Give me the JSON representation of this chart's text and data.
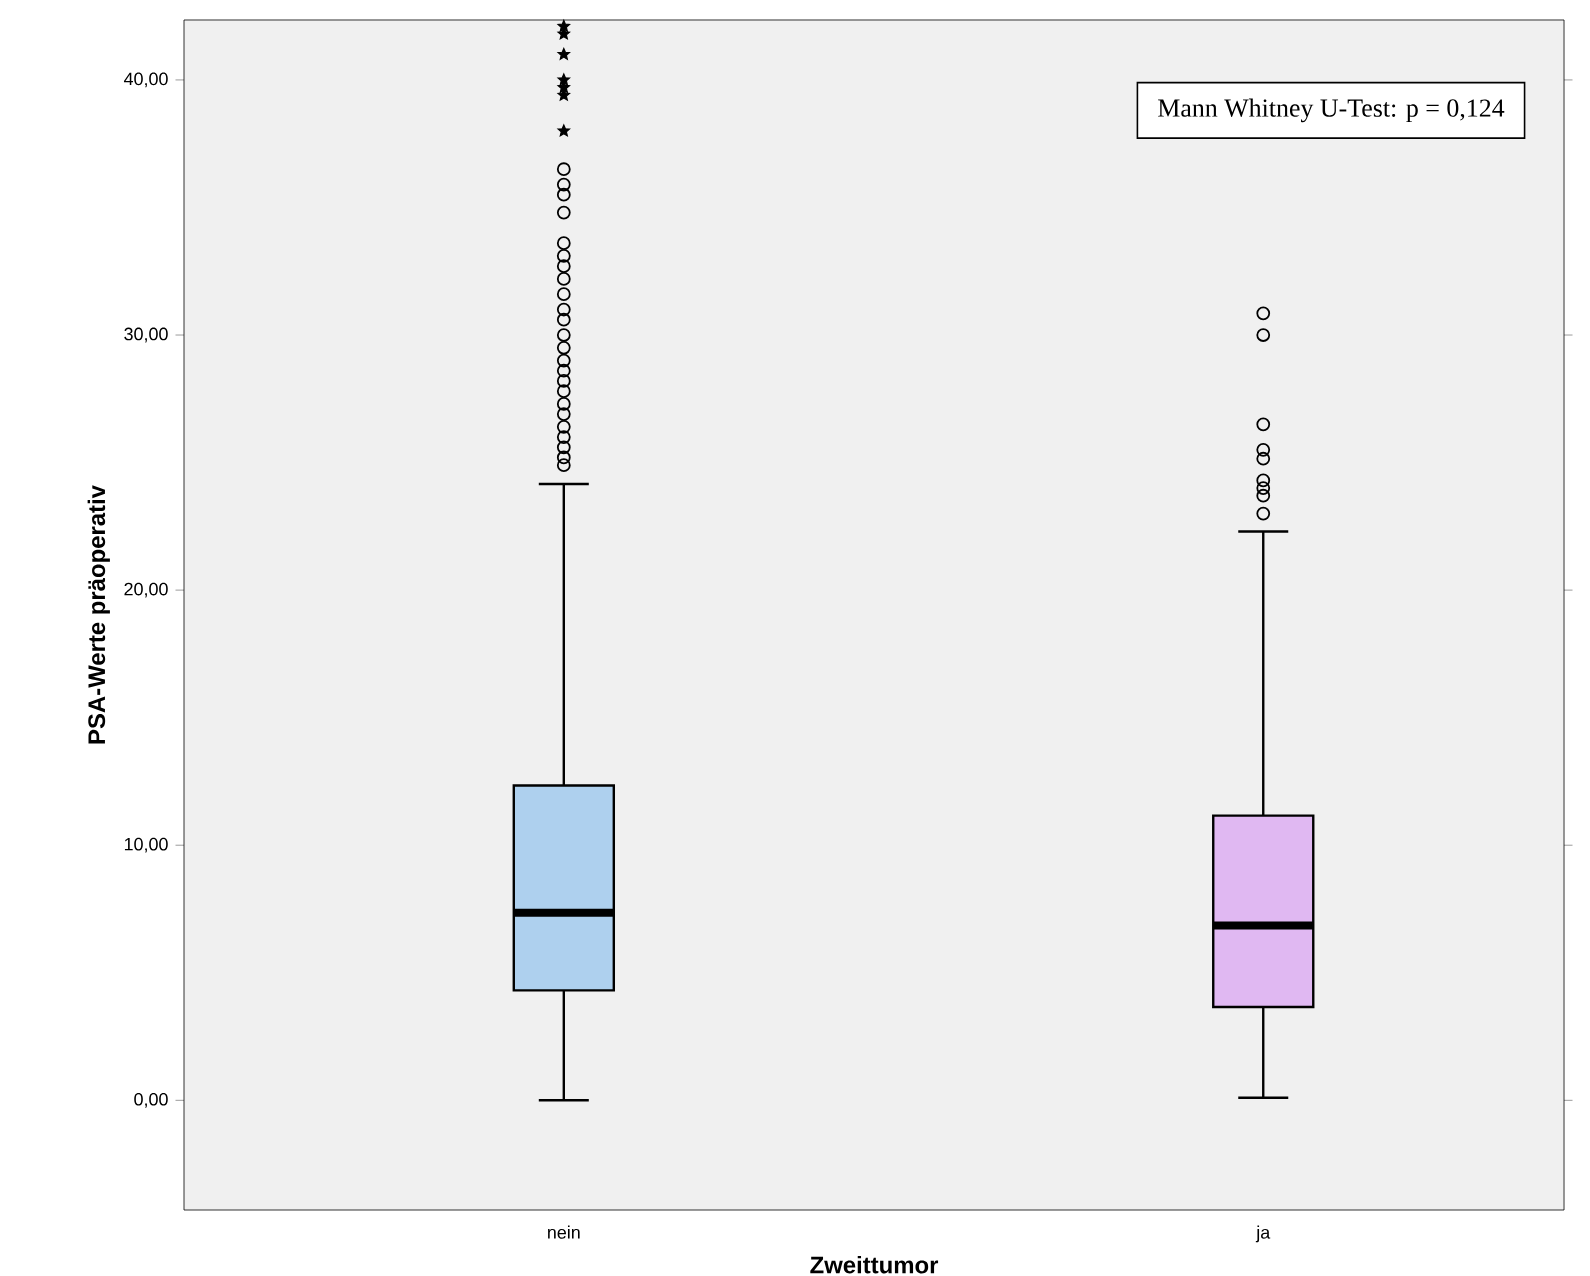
{
  "chart_data": {
    "type": "box",
    "xlabel": "Zweittumor",
    "ylabel": "PSA-Werte präoperativ",
    "categories": [
      "nein",
      "ja"
    ],
    "ylim": [
      -4.3,
      42.35
    ],
    "yticks": [
      {
        "value": 0,
        "label": "0,00"
      },
      {
        "value": 10,
        "label": "10,00"
      },
      {
        "value": 20,
        "label": "20,00"
      },
      {
        "value": 30,
        "label": "30,00"
      },
      {
        "value": 40,
        "label": "40,00"
      }
    ],
    "annotations": [
      "Mann Whitney U-Test: p = 0,124"
    ],
    "series": [
      {
        "type": "box",
        "colors": [
          "#aed0ee",
          "#e0b8f2"
        ],
        "marker": "circle",
        "boxes": [
          {
            "low": 0,
            "q1": 4.31,
            "median": 7.35,
            "q3": 12.34,
            "high": 24.16,
            "outliers": [
              36.5,
              35.9,
              35.5,
              34.8,
              33.6,
              33.1,
              32.7,
              32.2,
              31.6,
              31.0,
              30.6,
              30.0,
              29.5,
              29.0,
              28.6,
              28.2,
              27.8,
              27.3,
              26.9,
              26.4,
              26.0,
              25.6,
              25.2,
              24.9
            ]
          },
          {
            "low": 0.1,
            "q1": 3.66,
            "median": 6.85,
            "q3": 11.16,
            "high": 22.3,
            "outliers": [
              30.85,
              30.0,
              26.5,
              25.5,
              25.15,
              24.3,
              24.0,
              23.7,
              23.0
            ]
          }
        ]
      },
      {
        "type": "scatter",
        "color": "#000000",
        "marker": "star",
        "x": [
          "nein",
          "nein",
          "nein",
          "nein",
          "nein",
          "nein",
          "nein"
        ],
        "values": [
          42.1,
          41.8,
          41.0,
          40.0,
          39.7,
          39.4,
          38.0
        ]
      }
    ]
  }
}
